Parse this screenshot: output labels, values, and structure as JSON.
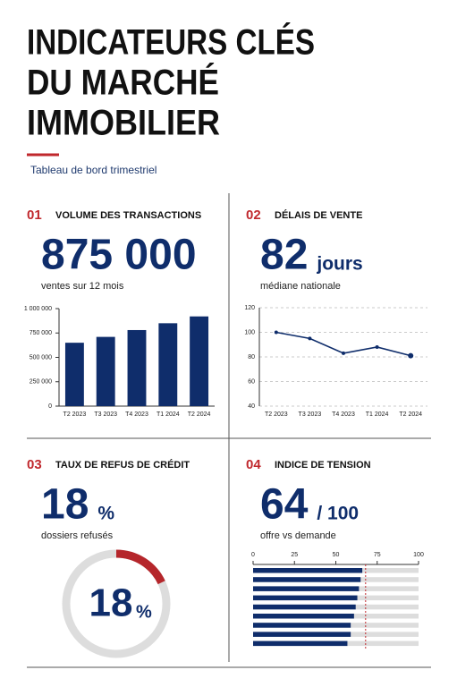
{
  "header": {
    "title_lines": [
      "INDICATEURS CLÉS",
      "DU MARCHÉ",
      "IMMOBILIER"
    ],
    "subtitle": "Tableau de bord trimestriel"
  },
  "panels": [
    {
      "number": "01",
      "title": "VOLUME DES TRANSACTIONS",
      "kpi": "875 000",
      "caption": "ventes sur 12 mois"
    },
    {
      "number": "02",
      "title": "DÉLAIS DE VENTE",
      "kpi": "82",
      "unit": "jours",
      "caption": "médiane nationale"
    },
    {
      "number": "03",
      "title": "TAUX DE REFUS DE CRÉDIT",
      "kpi": "18",
      "unit": "%",
      "caption": "dossiers refusés"
    },
    {
      "number": "04",
      "title": "INDICE DE TENSION",
      "kpi": "64",
      "unit": "/ 100",
      "caption": "offre vs demande"
    }
  ],
  "chart_data": [
    {
      "type": "bar",
      "categories": [
        "T2 2023",
        "T3 2023",
        "T4 2023",
        "T1 2024",
        "T2 2024"
      ],
      "values": [
        650000,
        710000,
        780000,
        850000,
        920000
      ],
      "color": "#0f2d6b",
      "ylim": [
        0,
        1000000
      ],
      "yticks": [
        0,
        {
          "value": 250000,
          "label": "250 000"
        },
        {
          "value": 500000,
          "label": "500 000"
        },
        {
          "value": 750000,
          "label": "750 000"
        },
        {
          "value": 1000000,
          "label": "1 000 000"
        }
      ]
    },
    {
      "type": "line",
      "categories": [
        "T2 2023",
        "T3 2023",
        "T4 2023",
        "T1 2024",
        "T2 2024"
      ],
      "values": [
        100,
        95,
        83,
        88,
        81
      ],
      "color": "#0f2d6b",
      "ylim": [
        40,
        120
      ],
      "yticks": [
        40,
        60,
        80,
        100,
        120
      ],
      "grid": true
    },
    {
      "type": "donut",
      "values": [
        18
      ],
      "value_labels": [
        "18"
      ],
      "unit": "%",
      "color": "#b5262b",
      "track_color": "#dddddd"
    },
    {
      "type": "hbar",
      "values": [
        66,
        65,
        64,
        63,
        62,
        61,
        59,
        59,
        57
      ],
      "color": "#0f2d6b",
      "track_color": "#dddddd",
      "xlim": [
        0,
        100
      ],
      "xticks": [
        0,
        25,
        50,
        75,
        100
      ],
      "threshold": 68,
      "threshold_color": "#c0282d"
    }
  ]
}
